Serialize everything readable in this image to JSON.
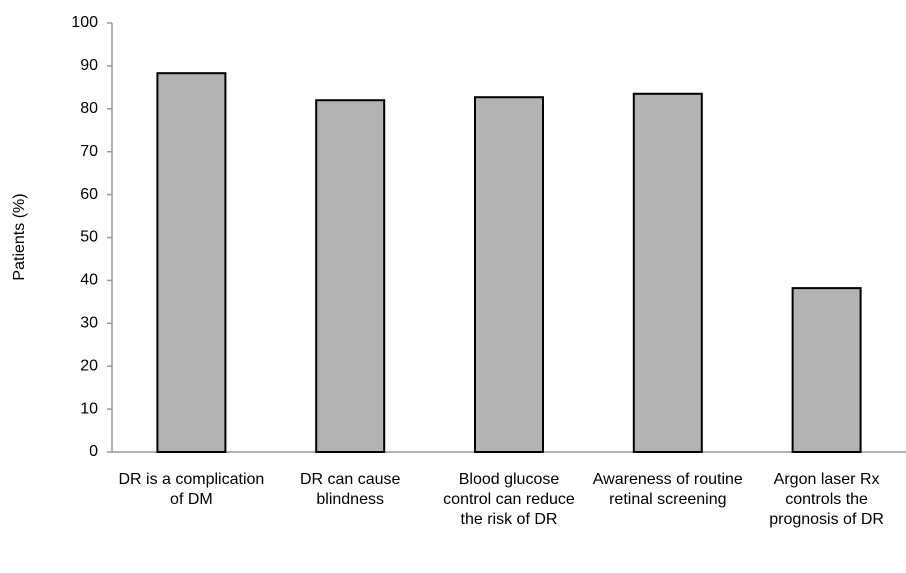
{
  "chart_data": {
    "type": "bar",
    "y_label": "Patients (%)",
    "categories": [
      "DR is a complication of DM",
      "DR can cause blindness",
      "Blood glucose control can reduce the risk of DR",
      "Awareness of routine retinal screening",
      "Argon laser Rx controls the prognosis of DR"
    ],
    "values": [
      88.3,
      82,
      82.7,
      83.5,
      38.2
    ],
    "color": "#b3b3b3",
    "ylim": [
      0,
      100
    ],
    "yticks": [
      0,
      10,
      20,
      30,
      40,
      50,
      60,
      70,
      80,
      90,
      100
    ],
    "grid": false
  }
}
